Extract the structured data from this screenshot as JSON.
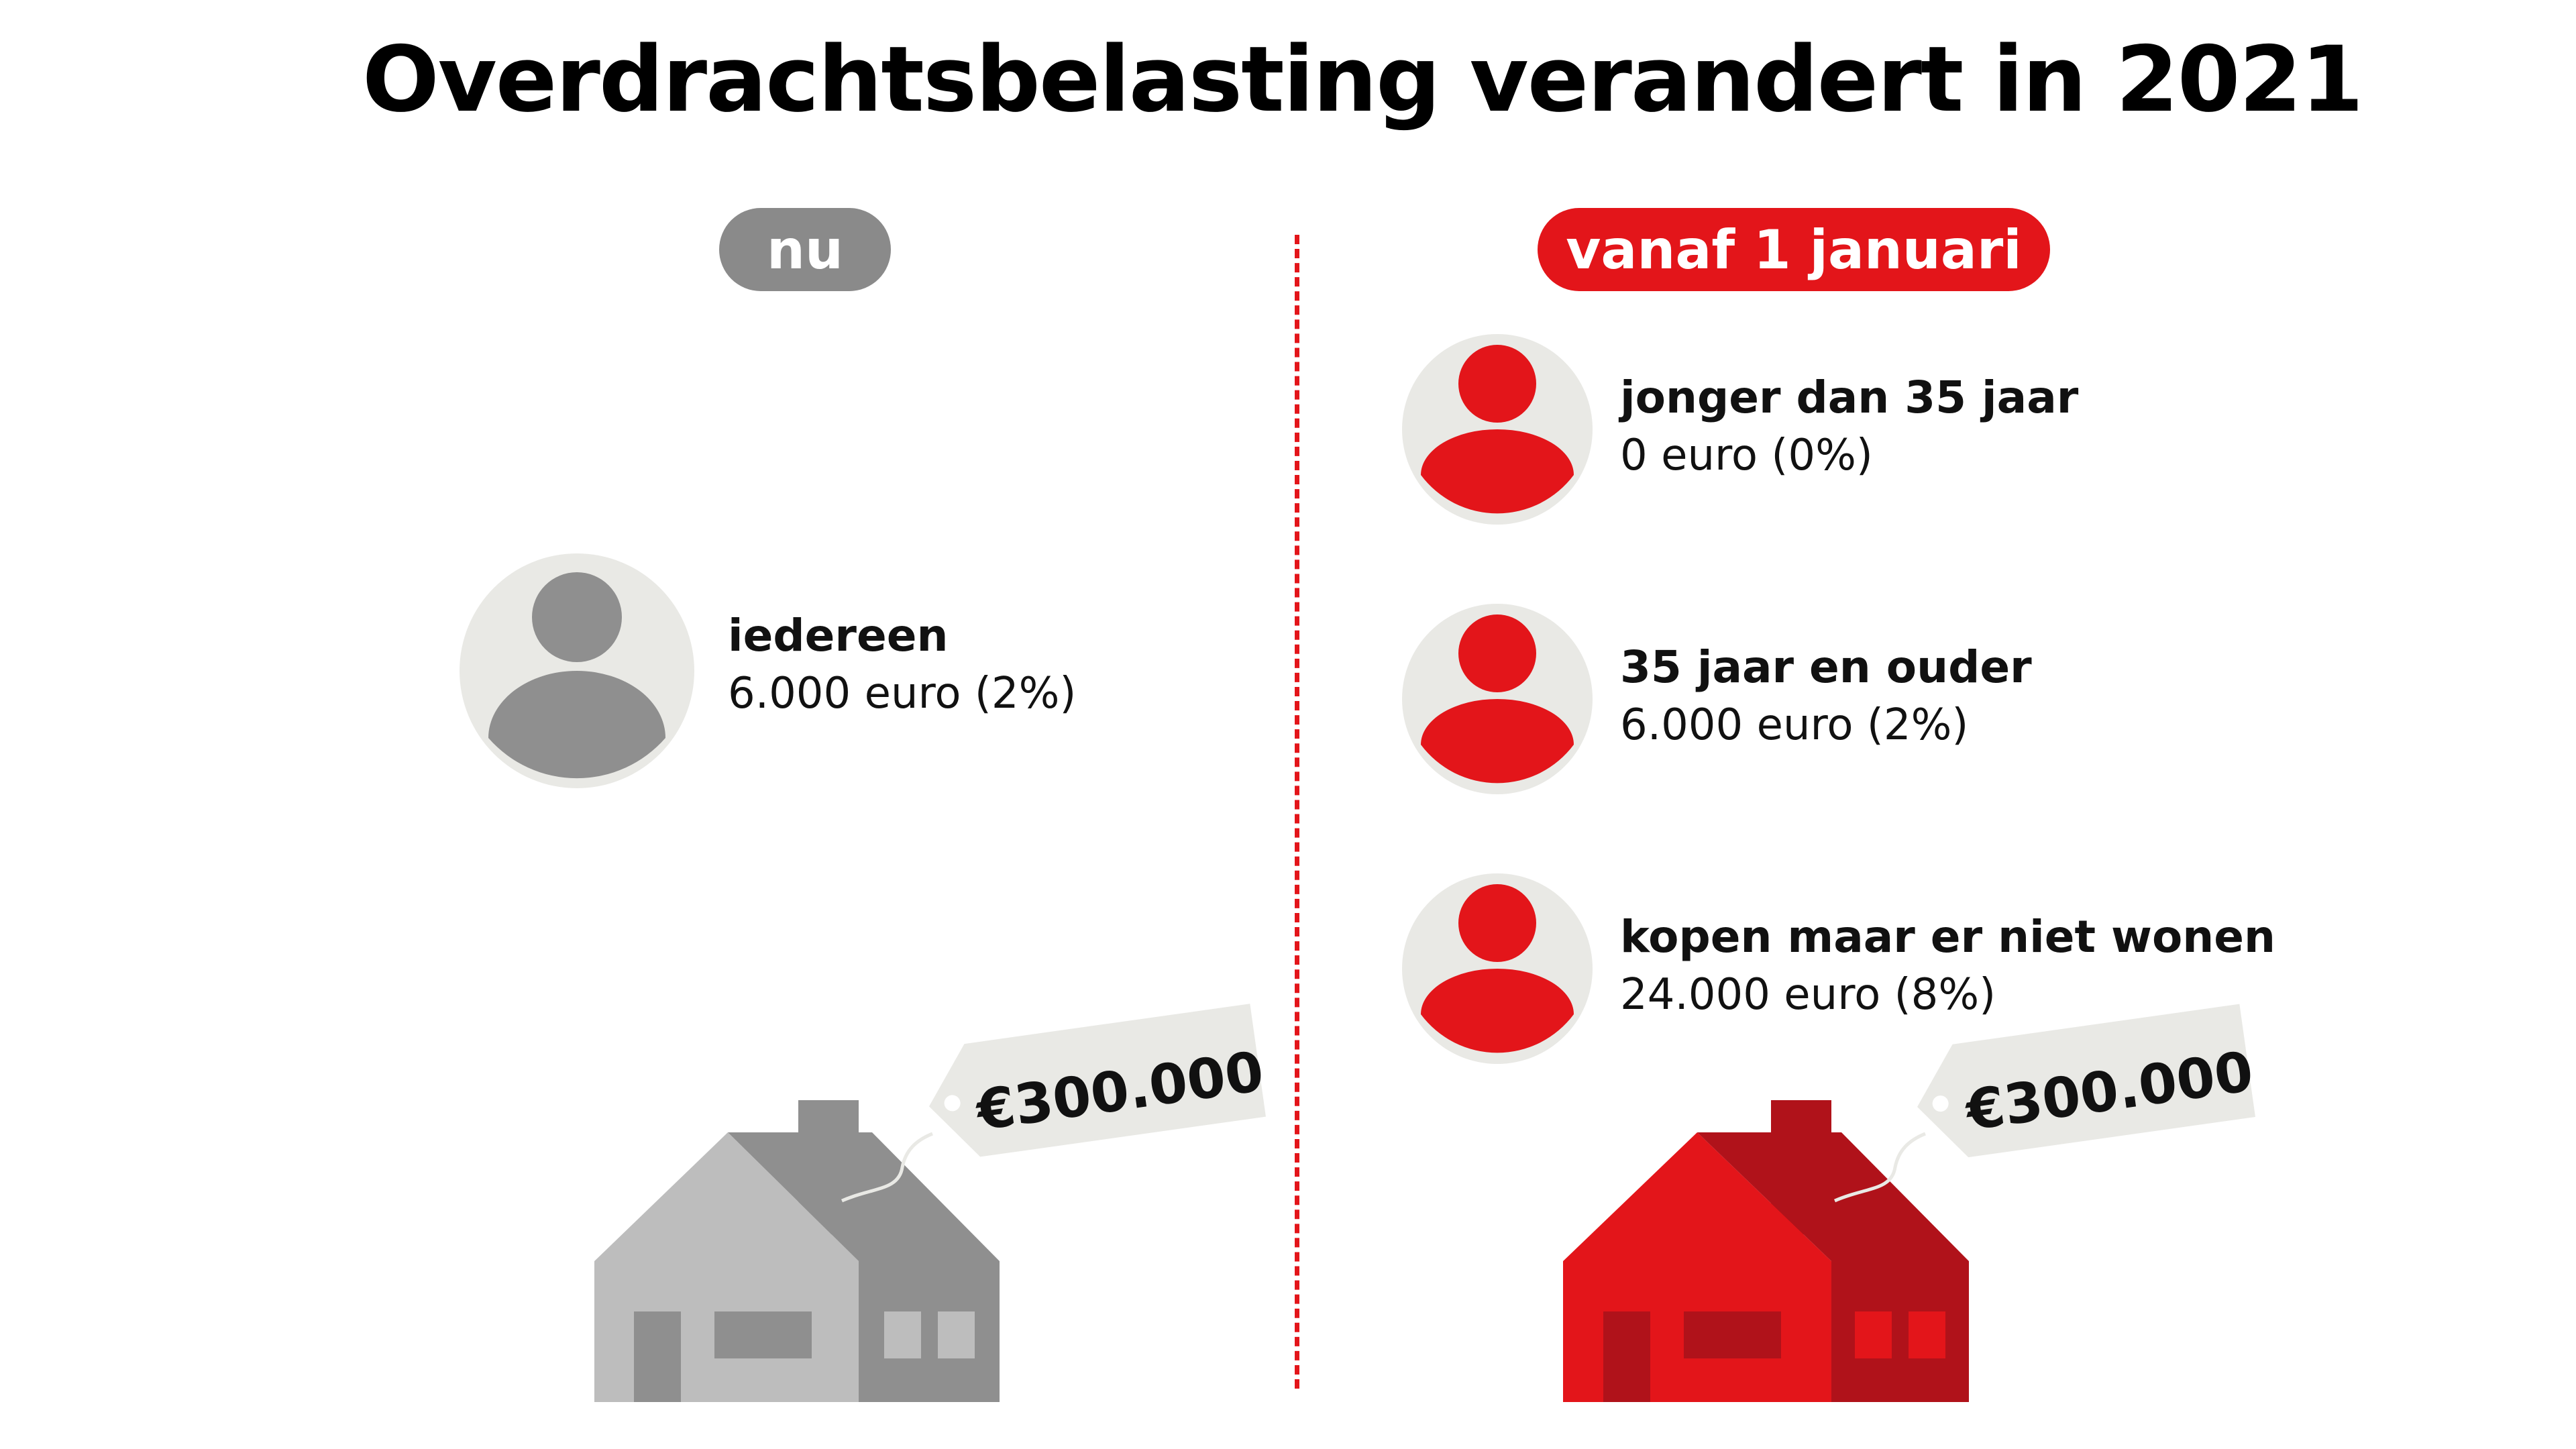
{
  "title": "Overdrachtsbelasting verandert in 2021",
  "now": {
    "badge": "nu",
    "badge_color": "#8a8a8a",
    "person": {
      "label": "iedereen",
      "value": "6.000 euro (2%)"
    },
    "price_tag": "€300.000"
  },
  "new": {
    "badge": "vanaf 1 januari",
    "badge_color": "#e3151a",
    "persons": [
      {
        "label": "jonger dan 35 jaar",
        "value": "0 euro (0%)"
      },
      {
        "label": "35 jaar en ouder",
        "value": "6.000 euro (2%)"
      },
      {
        "label": "kopen maar er niet wonen",
        "value": "24.000 euro (8%)"
      }
    ],
    "price_tag": "€300.000"
  },
  "colors": {
    "accent_red": "#e3151a",
    "dark_red": "#b0121a",
    "grey_light": "#bdbdbd",
    "grey_dark": "#8f8f8f",
    "avatar_bg": "#e9e9e5",
    "tag_bg": "#e9e9e5"
  },
  "icons": [
    "person-icon",
    "house-icon",
    "price-tag-icon"
  ]
}
